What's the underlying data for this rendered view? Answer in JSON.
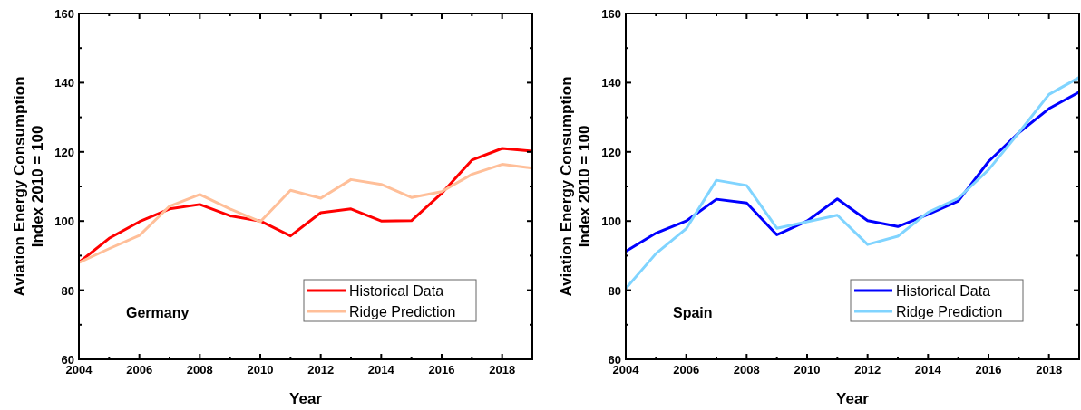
{
  "chart_data": [
    {
      "type": "line",
      "xlabel": "Year",
      "ylabel": "Aviation Energy Consumption\nIndex 2010 = 100",
      "annotations": [
        "Germany"
      ],
      "x": [
        2004,
        2005,
        2006,
        2007,
        2008,
        2009,
        2010,
        2011,
        2012,
        2013,
        2014,
        2015,
        2016,
        2017,
        2018,
        2019
      ],
      "xlim": [
        2004,
        2019
      ],
      "xticks": [
        2004,
        2006,
        2008,
        2010,
        2012,
        2014,
        2016,
        2018
      ],
      "ylim": [
        60,
        160
      ],
      "yticks": [
        60,
        80,
        100,
        120,
        140,
        160
      ],
      "grid": false,
      "legend": "bottom right",
      "series": [
        {
          "name": "Historical Data",
          "color": "#ff0000",
          "values": [
            88,
            95,
            99.8,
            103.5,
            104.8,
            101.5,
            100,
            95.7,
            102.4,
            103.5,
            100,
            100.1,
            108,
            117.6,
            121,
            120.2
          ]
        },
        {
          "name": "Ridge Prediction",
          "color": "#ffbf99",
          "values": [
            88,
            92,
            95.8,
            104.3,
            107.7,
            103.5,
            99.8,
            108.9,
            106.6,
            112,
            110.6,
            106.8,
            108.5,
            113.5,
            116.4,
            115.3
          ]
        }
      ]
    },
    {
      "type": "line",
      "xlabel": "Year",
      "ylabel": "Aviation Energy Consumption\nIndex 2010 = 100",
      "annotations": [
        "Spain"
      ],
      "x": [
        2004,
        2005,
        2006,
        2007,
        2008,
        2009,
        2010,
        2011,
        2012,
        2013,
        2014,
        2015,
        2016,
        2017,
        2018,
        2019
      ],
      "xlim": [
        2004,
        2019
      ],
      "xticks": [
        2004,
        2006,
        2008,
        2010,
        2012,
        2014,
        2016,
        2018
      ],
      "ylim": [
        60,
        160
      ],
      "yticks": [
        60,
        80,
        100,
        120,
        140,
        160
      ],
      "grid": false,
      "legend": "bottom right",
      "series": [
        {
          "name": "Historical Data",
          "color": "#0000ff",
          "values": [
            91.2,
            96.5,
            100,
            106.3,
            105.2,
            96,
            100,
            106.4,
            100.1,
            98.4,
            101.9,
            105.8,
            117.2,
            125.5,
            132.5,
            137.3
          ]
        },
        {
          "name": "Ridge Prediction",
          "color": "#80d4ff",
          "values": [
            80.5,
            90.6,
            97.8,
            111.8,
            110.3,
            97.9,
            99.8,
            101.7,
            93.2,
            95.6,
            102.5,
            106.6,
            114.8,
            125.5,
            136.6,
            141.5
          ]
        }
      ]
    }
  ]
}
